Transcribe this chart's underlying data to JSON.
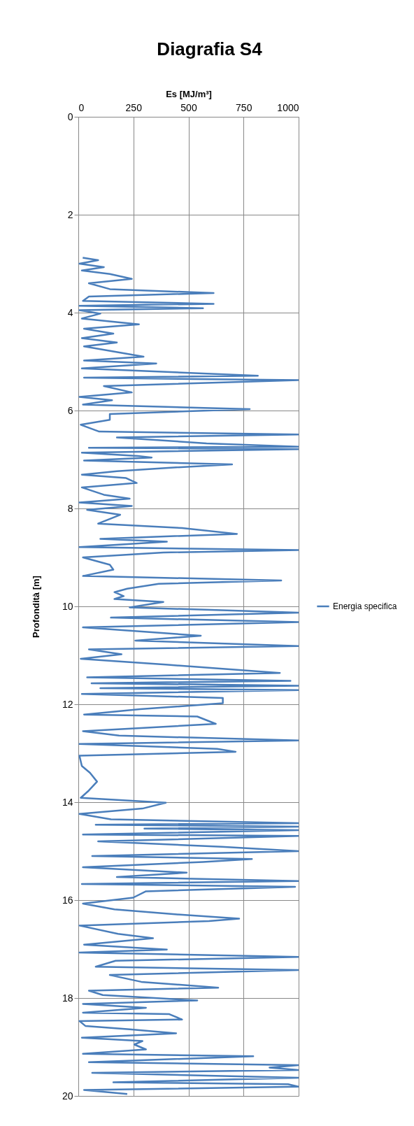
{
  "chart_data": {
    "type": "line",
    "title": "Diagrafia S4",
    "xlabel": "Es [MJ/m³]",
    "ylabel": "Profondità [m]",
    "xlim": [
      0,
      1000
    ],
    "xticks": [
      0,
      250,
      500,
      750,
      1000
    ],
    "ylim": [
      20,
      0
    ],
    "yticks": [
      0,
      2,
      4,
      6,
      8,
      10,
      12,
      14,
      16,
      18,
      20
    ],
    "grid": true,
    "legend": "right",
    "x": [
      20,
      90,
      5,
      116,
      16,
      143,
      243,
      48,
      143,
      614,
      48,
      21,
      614,
      5,
      566,
      5,
      100,
      16,
      275,
      26,
      159,
      16,
      175,
      26,
      296,
      26,
      354,
      16,
      815,
      26,
      1000,
      116,
      243,
      5,
      153,
      21,
      778,
      143,
      143,
      11,
      95,
      1000,
      175,
      582,
      1000,
      48,
      1000,
      16,
      270,
      333,
      26,
      698,
      407,
      175,
      16,
      217,
      265,
      16,
      116,
      233,
      5,
      243,
      40,
      190,
      90,
      471,
      720,
      100,
      402,
      5,
      1000,
      386,
      21,
      143,
      159,
      21,
      921,
      365,
      222,
      164,
      206,
      164,
      386,
      233,
      1000,
      148,
      1000,
      21,
      556,
      259,
      1000,
      48,
      196,
      11,
      397,
      915,
      40,
      963,
      60,
      1000,
      100,
      1000,
      16,
      656,
      656,
      280,
      26,
      540,
      624,
      21,
      185,
      1000,
      5,
      630,
      714,
      5,
      16,
      53,
      85,
      48,
      11,
      397,
      291,
      5,
      148,
      1000,
      79,
      1000,
      300,
      1000,
      21,
      1000,
      90,
      651,
      1000,
      63,
      788,
      566,
      21,
      492,
      175,
      1000,
      16,
      984,
      307,
      249,
      21,
      164,
      439,
      730,
      593,
      5,
      180,
      339,
      26,
      402,
      5,
      1000,
      169,
      79,
      1000,
      143,
      286,
      635,
      48,
      111,
      540,
      21,
      307,
      21,
      413,
      471,
      5,
      32,
      233,
      444,
      16,
      291,
      254,
      307,
      21,
      794,
      48,
      1000,
      868,
      1000,
      63,
      1000,
      159,
      952,
      1000,
      26,
      222
    ],
    "series": [
      {
        "name": "Energia specifica",
        "color": "#4a7ebb",
        "values": [
          2.88,
          2.93,
          3.0,
          3.07,
          3.14,
          3.21,
          3.31,
          3.4,
          3.52,
          3.6,
          3.67,
          3.76,
          3.82,
          3.86,
          3.91,
          3.95,
          4.02,
          4.12,
          4.24,
          4.33,
          4.43,
          4.52,
          4.61,
          4.69,
          4.9,
          4.98,
          5.04,
          5.14,
          5.29,
          5.33,
          5.38,
          5.5,
          5.63,
          5.72,
          5.79,
          5.88,
          5.97,
          6.07,
          6.19,
          6.29,
          6.43,
          6.49,
          6.55,
          6.67,
          6.74,
          6.76,
          6.79,
          6.86,
          6.93,
          6.96,
          7.02,
          7.1,
          7.17,
          7.24,
          7.31,
          7.38,
          7.48,
          7.57,
          7.72,
          7.8,
          7.88,
          7.95,
          8.03,
          8.13,
          8.31,
          8.4,
          8.52,
          8.62,
          8.68,
          8.79,
          8.85,
          8.9,
          9.0,
          9.15,
          9.25,
          9.38,
          9.47,
          9.54,
          9.64,
          9.71,
          9.79,
          9.85,
          9.91,
          10.02,
          10.13,
          10.23,
          10.32,
          10.43,
          10.6,
          10.7,
          10.81,
          10.88,
          10.98,
          11.07,
          11.19,
          11.36,
          11.45,
          11.52,
          11.57,
          11.62,
          11.67,
          11.71,
          11.79,
          11.87,
          11.98,
          12.1,
          12.21,
          12.25,
          12.4,
          12.55,
          12.64,
          12.74,
          12.81,
          12.91,
          12.97,
          13.05,
          13.26,
          13.4,
          13.58,
          13.76,
          13.91,
          14.01,
          14.13,
          14.24,
          14.35,
          14.43,
          14.46,
          14.5,
          14.54,
          14.57,
          14.66,
          14.69,
          14.8,
          14.91,
          15.0,
          15.1,
          15.16,
          15.22,
          15.33,
          15.44,
          15.53,
          15.61,
          15.67,
          15.73,
          15.82,
          15.95,
          16.07,
          16.19,
          16.29,
          16.38,
          16.43,
          16.52,
          16.69,
          16.78,
          16.91,
          17.01,
          17.07,
          17.16,
          17.24,
          17.36,
          17.43,
          17.53,
          17.67,
          17.79,
          17.85,
          17.94,
          18.05,
          18.12,
          18.2,
          18.3,
          18.33,
          18.44,
          18.47,
          18.57,
          18.64,
          18.72,
          18.81,
          18.88,
          18.95,
          19.05,
          19.14,
          19.19,
          19.31,
          19.37,
          19.42,
          19.47,
          19.53,
          19.63,
          19.72,
          19.76,
          19.81,
          19.88,
          19.96
        ]
      }
    ]
  }
}
